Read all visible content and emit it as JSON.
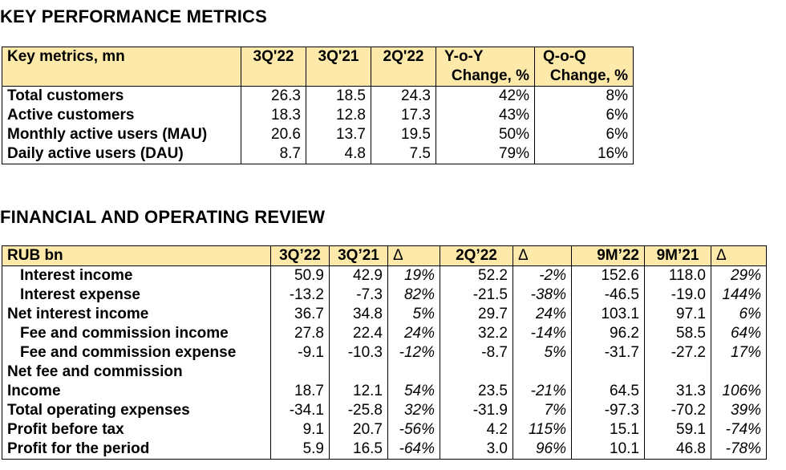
{
  "kpi": {
    "title": "KEY PERFORMANCE METRICS",
    "headers": [
      "Key metrics, mn",
      "3Q'22",
      "3Q'21",
      "2Q'22",
      "Y-o-Y",
      "Q-o-Q"
    ],
    "header_sub": [
      "Change, %",
      "Change, %"
    ],
    "rows": [
      [
        "Total customers",
        "26.3",
        "18.5",
        "24.3",
        "42%",
        "8%"
      ],
      [
        "Active customers",
        "18.3",
        "12.8",
        "17.3",
        "43%",
        "6%"
      ],
      [
        "Monthly active users (MAU)",
        "20.6",
        "13.7",
        "19.5",
        "50%",
        "6%"
      ],
      [
        "Daily active users (DAU)",
        "8.7",
        "4.8",
        "7.5",
        "79%",
        "16%"
      ]
    ]
  },
  "fin": {
    "title": "FINANCIAL AND OPERATING REVIEW",
    "headers": [
      "RUB bn",
      "3Q’22",
      "3Q’21",
      "Δ",
      "2Q’22",
      "Δ",
      "9M’22",
      "9M’21",
      "Δ"
    ],
    "rows": [
      [
        "Interest income",
        "50.9",
        "42.9",
        "19%",
        "52.2",
        "-2%",
        "152.6",
        "118.0",
        "29%"
      ],
      [
        "Interest expense",
        "-13.2",
        "-7.3",
        "82%",
        "-21.5",
        "-38%",
        "-46.5",
        "-19.0",
        "144%"
      ],
      [
        "Net interest income",
        "36.7",
        "34.8",
        "5%",
        "29.7",
        "24%",
        "103.1",
        "97.1",
        "6%"
      ],
      [
        "Fee and commission income",
        "27.8",
        "22.4",
        "24%",
        "32.2",
        "-14%",
        "96.2",
        "58.5",
        "64%"
      ],
      [
        "Fee and commission expense",
        "-9.1",
        "-10.3",
        "-12%",
        "-8.7",
        "5%",
        "-31.7",
        "-27.2",
        "17%"
      ],
      [
        "Net fee and commission",
        "",
        "",
        "",
        "",
        "",
        "",
        "",
        ""
      ],
      [
        "Income",
        "18.7",
        "12.1",
        "54%",
        "23.5",
        "-21%",
        "64.5",
        "31.3",
        "106%"
      ],
      [
        "Total operating expenses",
        "-34.1",
        "-25.8",
        "32%",
        "-31.9",
        "7%",
        "-97.3",
        "-70.2",
        "39%"
      ],
      [
        "Profit before tax",
        "9.1",
        "20.7",
        "-56%",
        "4.2",
        "115%",
        "15.1",
        "59.1",
        "-74%"
      ],
      [
        "Profit for the period",
        "5.9",
        "16.5",
        "-64%",
        "3.0",
        "96%",
        "10.1",
        "46.8",
        "-78%"
      ]
    ]
  }
}
